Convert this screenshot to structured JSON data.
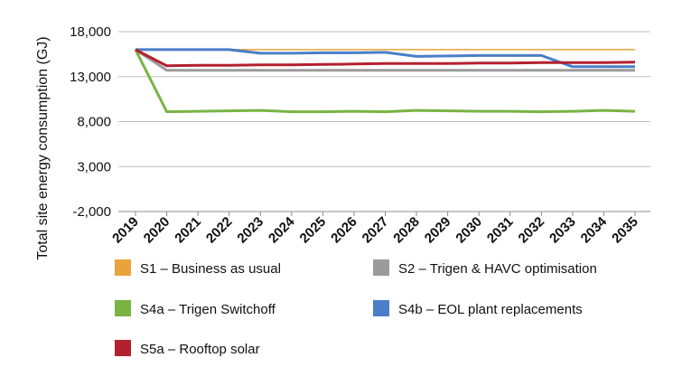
{
  "chart_data": {
    "type": "line",
    "title": "",
    "xlabel": "",
    "ylabel": "Total site energy consumption (GJ)",
    "x": [
      "2019",
      "2020",
      "2021",
      "2022",
      "2023",
      "2024",
      "2025",
      "2026",
      "2027",
      "2028",
      "2029",
      "2030",
      "2031",
      "2032",
      "2033",
      "2034",
      "2035"
    ],
    "ylim": [
      -2000,
      18000
    ],
    "yticks": [
      -2000,
      3000,
      8000,
      13000,
      18000
    ],
    "ytick_labels": [
      "-2,000",
      "3,000",
      "8,000",
      "13,000",
      "18,000"
    ],
    "grid": true,
    "legend_position": "bottom",
    "series": [
      {
        "name": "S1 – Business as usual",
        "color": "#e8a33b",
        "values": [
          16000,
          16000,
          16000,
          16000,
          16000,
          16000,
          16000,
          16000,
          16000,
          16000,
          16000,
          16000,
          16000,
          16000,
          16000,
          16000,
          16000
        ]
      },
      {
        "name": "S2 – Trigen & HAVC optimisation",
        "color": "#9b9b9b",
        "values": [
          16000,
          13700,
          13700,
          13700,
          13700,
          13700,
          13700,
          13700,
          13700,
          13700,
          13700,
          13700,
          13700,
          13700,
          13700,
          13700,
          13700
        ]
      },
      {
        "name": "S4a – Trigen Switchoff",
        "color": "#79b443",
        "values": [
          16000,
          9100,
          9150,
          9200,
          9250,
          9100,
          9100,
          9150,
          9100,
          9250,
          9200,
          9150,
          9150,
          9100,
          9150,
          9250,
          9150
        ]
      },
      {
        "name": "S4b – EOL plant replacements",
        "color": "#4a7ec8",
        "values": [
          16000,
          16000,
          16000,
          16000,
          15600,
          15600,
          15650,
          15650,
          15700,
          15250,
          15300,
          15350,
          15350,
          15350,
          14100,
          14100,
          14100
        ]
      },
      {
        "name": "S5a – Rooftop solar",
        "color": "#b3202e",
        "values": [
          16000,
          14200,
          14250,
          14250,
          14300,
          14300,
          14350,
          14400,
          14450,
          14450,
          14450,
          14500,
          14500,
          14550,
          14550,
          14550,
          14600
        ]
      }
    ]
  }
}
